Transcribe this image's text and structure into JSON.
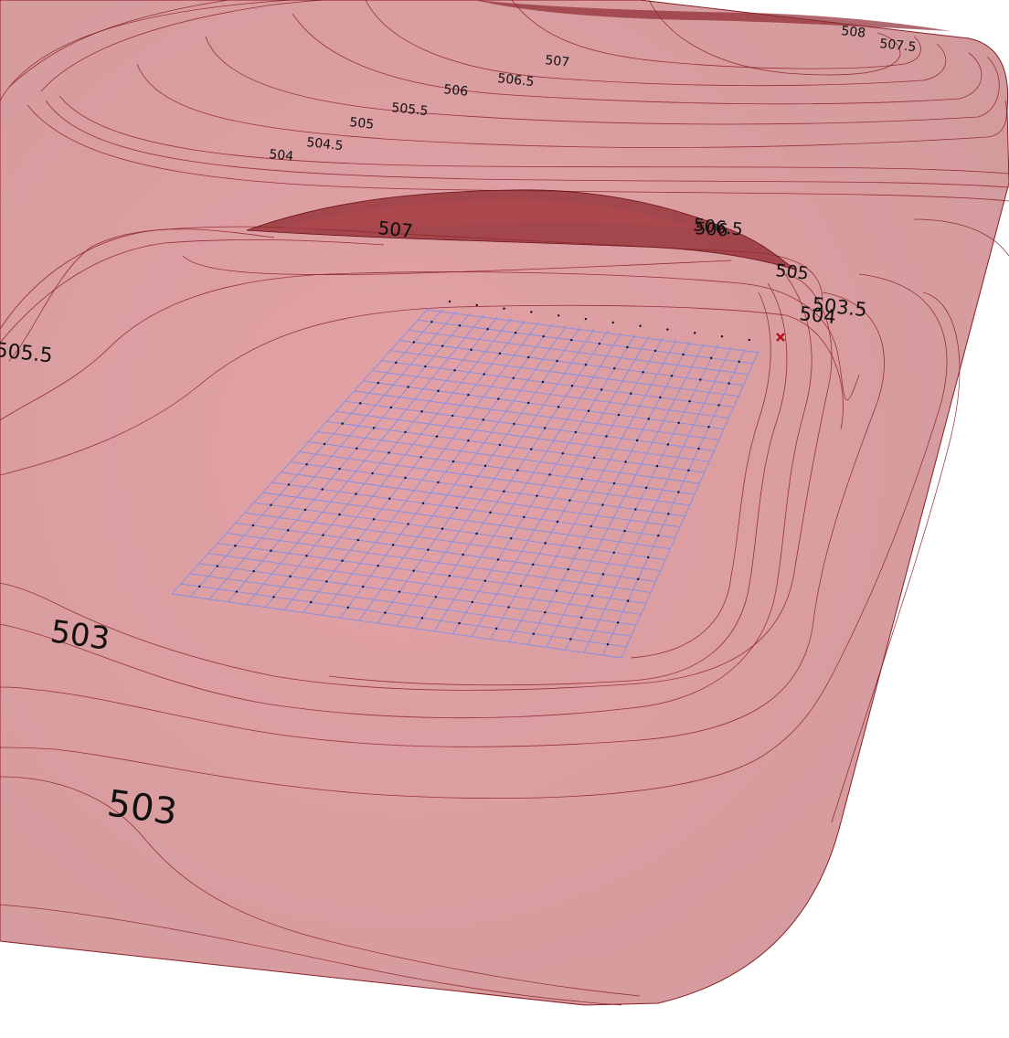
{
  "scene": {
    "surface_color": "#d99a9e",
    "surface_edge_color": "#8a1d26",
    "contour_color": "#8a1d26",
    "ridge_color": "#8f2a30",
    "grid_color": "#7f8fe8",
    "point_color": "#111111",
    "marker_color": "#b3121e",
    "marker_icon": "x-marker"
  },
  "contour_labels": [
    {
      "id": "lbl-508",
      "text": "508"
    },
    {
      "id": "lbl-507-5",
      "text": "507.5"
    },
    {
      "id": "lbl-507-top",
      "text": "507"
    },
    {
      "id": "lbl-506-5-top",
      "text": "506.5"
    },
    {
      "id": "lbl-506-top",
      "text": "506"
    },
    {
      "id": "lbl-505-5-top",
      "text": "505.5"
    },
    {
      "id": "lbl-505-top",
      "text": "505"
    },
    {
      "id": "lbl-504-5-top",
      "text": "504.5"
    },
    {
      "id": "lbl-504-top",
      "text": "504"
    },
    {
      "id": "lbl-507-ridge",
      "text": "507"
    },
    {
      "id": "lbl-506-5-ridge",
      "text": "506.5"
    },
    {
      "id": "lbl-506-ridge",
      "text": "506"
    },
    {
      "id": "lbl-505-right",
      "text": "505"
    },
    {
      "id": "lbl-503-5-right",
      "text": "503.5"
    },
    {
      "id": "lbl-504-right",
      "text": "504"
    },
    {
      "id": "lbl-505-5-left",
      "text": "505.5"
    },
    {
      "id": "lbl-503-mid",
      "text": "503"
    },
    {
      "id": "lbl-503-bottom",
      "text": "503"
    }
  ],
  "grid": {
    "columns": 24,
    "rows": 30
  }
}
